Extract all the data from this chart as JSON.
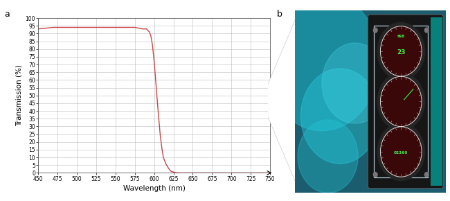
{
  "title_a": "a",
  "title_b": "b",
  "xlabel": "Wavelength (nm)",
  "ylabel": "Transmission (%)",
  "xmin": 450,
  "xmax": 750,
  "ymin": 0,
  "ymax": 100,
  "xticks": [
    450,
    475,
    500,
    525,
    550,
    575,
    600,
    625,
    650,
    675,
    700,
    725,
    750
  ],
  "yticks": [
    0,
    5,
    10,
    15,
    20,
    25,
    30,
    35,
    40,
    45,
    50,
    55,
    60,
    65,
    70,
    75,
    80,
    85,
    90,
    95,
    100
  ],
  "line_color": "#cc4444",
  "grid_color": "#bbbbbb",
  "background_color": "#ffffff",
  "curve_x": [
    450,
    460,
    470,
    480,
    490,
    500,
    510,
    520,
    530,
    540,
    550,
    560,
    570,
    575,
    580,
    585,
    590,
    592,
    594,
    596,
    598,
    600,
    602,
    604,
    606,
    608,
    610,
    612,
    615,
    618,
    620,
    622,
    625,
    628,
    630,
    635,
    640,
    650,
    660,
    680,
    700,
    750
  ],
  "curve_y": [
    93,
    93.5,
    94,
    94,
    94,
    94,
    94,
    94,
    94,
    94,
    94,
    94,
    94,
    94,
    93.5,
    93,
    93,
    92,
    91,
    88,
    82,
    72,
    60,
    47,
    35,
    24,
    16,
    10,
    6,
    3.5,
    2,
    1,
    0.5,
    0.2,
    0.1,
    0,
    0,
    0,
    0,
    0,
    0,
    0
  ],
  "panel_bg": "#1a5a6a",
  "panel_dark": "#181818",
  "gauge_color": "#3d0808",
  "gauge_rim": "#cccccc",
  "green_text": "#44ee44",
  "teal_bg": "#00c0c0"
}
